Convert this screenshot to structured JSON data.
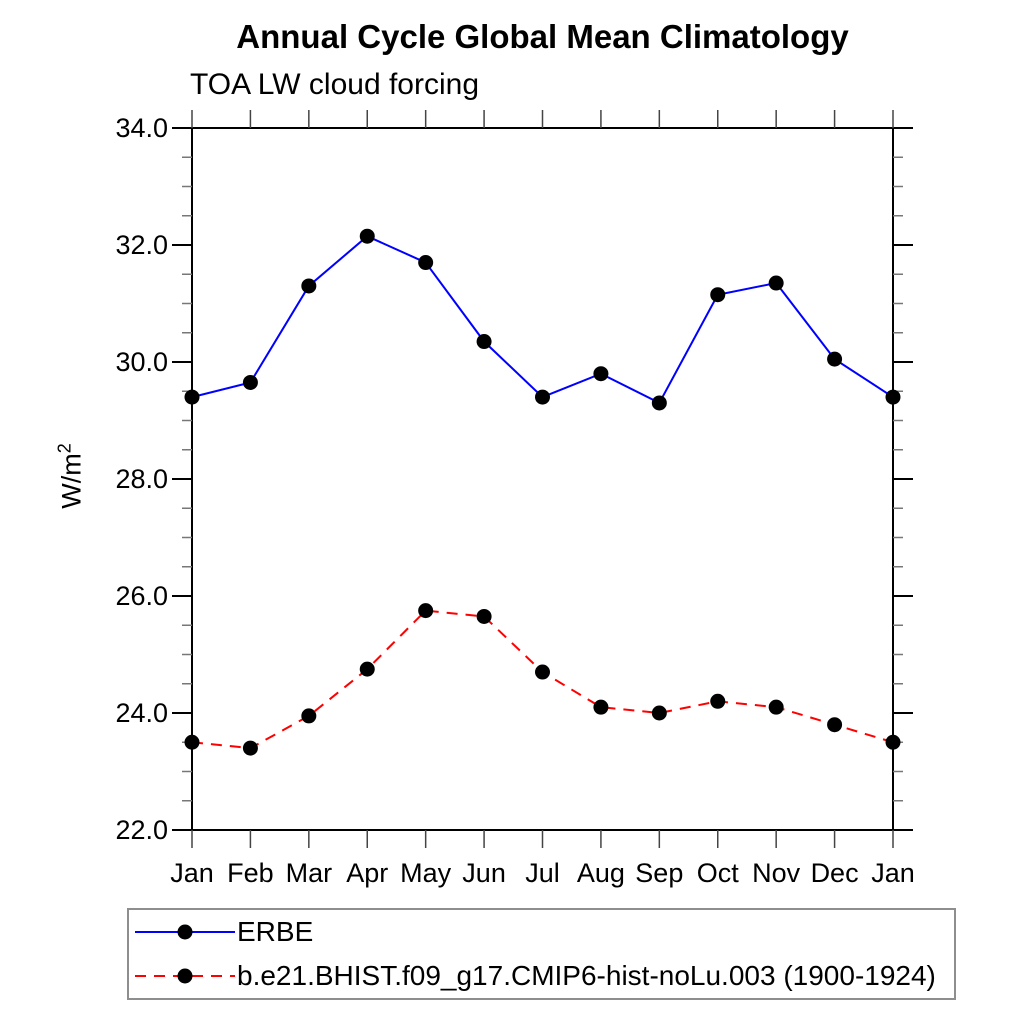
{
  "chart_data": {
    "type": "line",
    "title": "Annual Cycle Global Mean Climatology",
    "subtitle": "TOA LW cloud forcing",
    "ylabel_main": "W/m",
    "ylabel_sup": "2",
    "categories": [
      "Jan",
      "Feb",
      "Mar",
      "Apr",
      "May",
      "Jun",
      "Jul",
      "Aug",
      "Sep",
      "Oct",
      "Nov",
      "Dec",
      "Jan"
    ],
    "series": [
      {
        "name": "ERBE",
        "line_color": "#0000ff",
        "line_style": "solid",
        "marker_color": "#000000",
        "values": [
          29.4,
          29.65,
          31.3,
          32.15,
          31.7,
          30.35,
          29.4,
          29.8,
          29.3,
          31.15,
          31.35,
          30.05,
          29.4
        ]
      },
      {
        "name": "b.e21.BHIST.f09_g17.CMIP6-hist-noLu.003 (1900-1924)",
        "line_color": "#ff0000",
        "line_style": "dashed",
        "marker_color": "#000000",
        "values": [
          23.5,
          23.4,
          23.95,
          24.75,
          25.75,
          25.65,
          24.7,
          24.1,
          24.0,
          24.2,
          24.1,
          23.8,
          23.5
        ]
      }
    ],
    "ylim": [
      22,
      34
    ],
    "ytick_interval": 2,
    "ytick_minor_interval": 0.5,
    "ytick_labels": [
      "22.0",
      "24.0",
      "26.0",
      "28.0",
      "30.0",
      "32.0",
      "34.0"
    ],
    "grid": false,
    "legend_position": "bottom-left",
    "frame_color": "#000000",
    "minor_tick_color": "#777777",
    "month_tick_color": "#444444"
  }
}
